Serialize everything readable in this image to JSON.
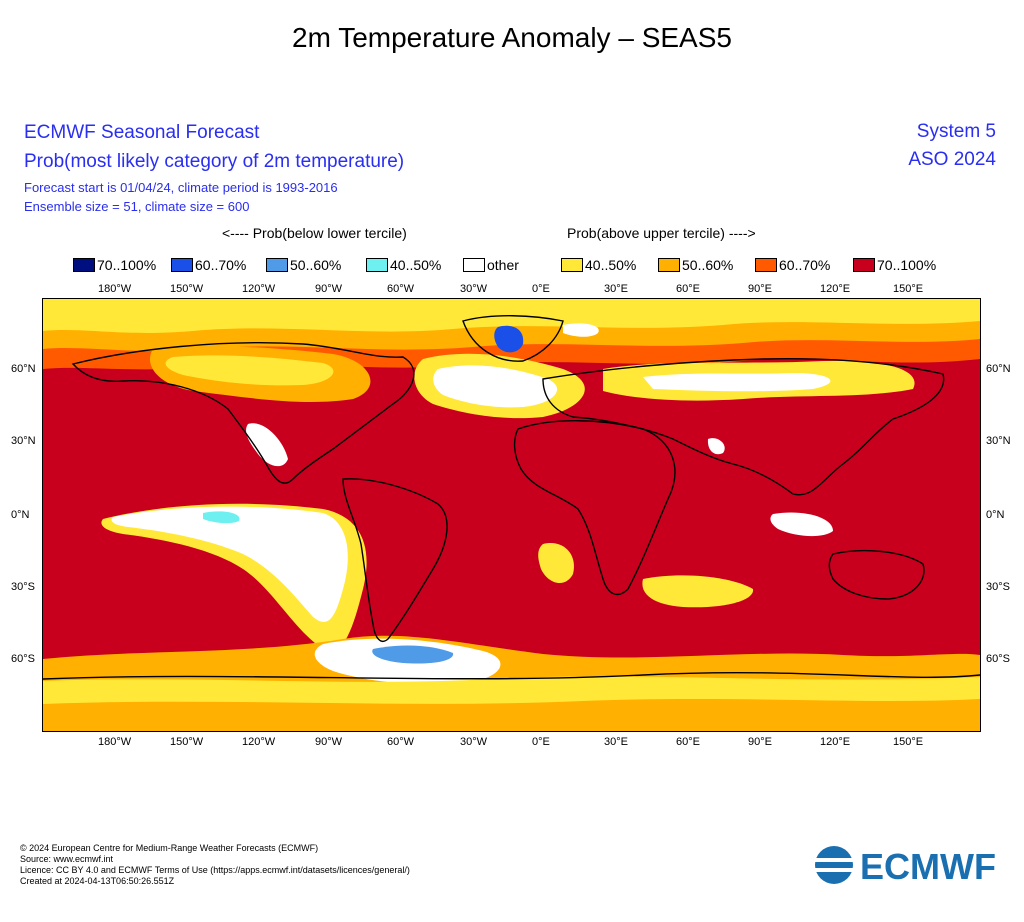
{
  "title": "2m Temperature Anomaly – SEAS5",
  "header": {
    "line1": "ECMWF Seasonal Forecast",
    "line2": "Prob(most likely category of 2m temperature)",
    "line3": "Forecast start is 01/04/24, climate period is 1993-2016",
    "line4": "Ensemble size = 51, climate size = 600",
    "system": "System 5",
    "period": "ASO 2024"
  },
  "legend": {
    "below_title": "<---- Prob(below lower tercile)",
    "above_title": "Prob(above upper tercile) ---->",
    "items": [
      {
        "label": "70..100%",
        "color": "#000f7f"
      },
      {
        "label": "60..70%",
        "color": "#1a4fe8"
      },
      {
        "label": "50..60%",
        "color": "#4f9be8"
      },
      {
        "label": "40..50%",
        "color": "#6ff0f0"
      },
      {
        "label": "other",
        "color": "#ffffff"
      },
      {
        "label": "40..50%",
        "color": "#ffe838"
      },
      {
        "label": "50..60%",
        "color": "#ffb000"
      },
      {
        "label": "60..70%",
        "color": "#ff5a00"
      },
      {
        "label": "70..100%",
        "color": "#c8001e"
      }
    ]
  },
  "axes": {
    "lon_labels": [
      "180°W",
      "150°W",
      "120°W",
      "90°W",
      "60°W",
      "30°W",
      "0°E",
      "30°E",
      "60°E",
      "90°E",
      "120°E",
      "150°E"
    ],
    "lat_labels": [
      "60°N",
      "30°N",
      "0°N",
      "30°S",
      "60°S"
    ]
  },
  "footer": {
    "line1": "© 2024 European Centre for Medium-Range Weather Forecasts (ECMWF)",
    "line2": "Source: www.ecmwf.int",
    "line3": "Licence: CC BY 4.0 and ECMWF Terms of Use (https://apps.ecmwf.int/datasets/licences/general/)",
    "line4": "Created at 2024-04-13T06:50:26.551Z"
  },
  "logo": {
    "text": "ECMWF",
    "color": "#1a6fb0"
  }
}
